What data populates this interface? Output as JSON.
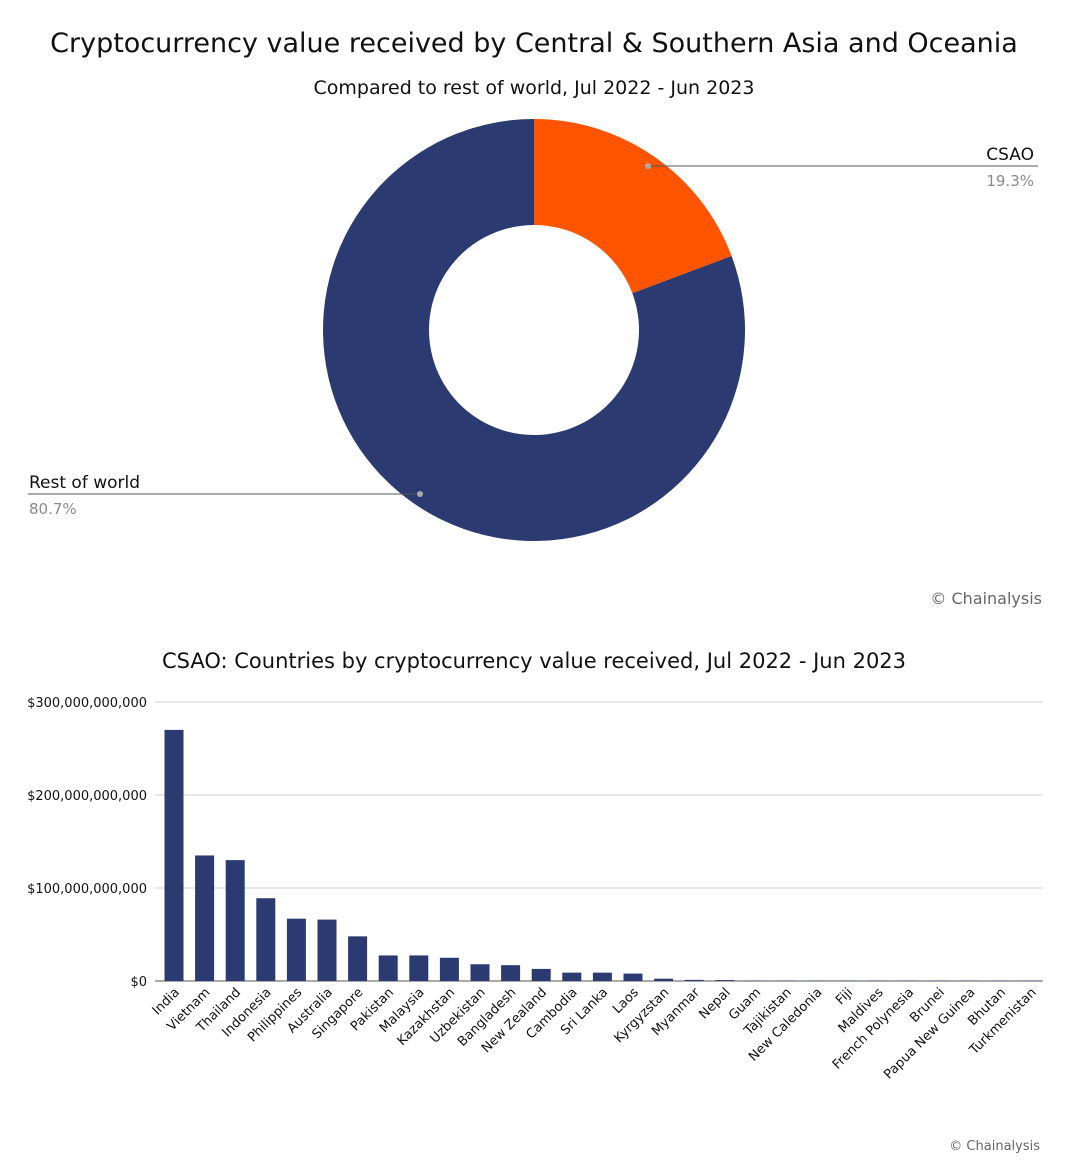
{
  "chart_data": [
    {
      "type": "pie",
      "title": "Cryptocurrency value received by Central & Southern Asia and Oceania",
      "subtitle": "Compared to rest of world, Jul 2022 - Jun 2023",
      "donut": true,
      "slices": [
        {
          "label": "CSAO",
          "value": 19.3,
          "display": "19.3%",
          "color": "#FF5500"
        },
        {
          "label": "Rest of world",
          "value": 80.7,
          "display": "80.7%",
          "color": "#2B3A70"
        }
      ],
      "credit": "© Chainalysis"
    },
    {
      "type": "bar",
      "title": "CSAO: Countries by cryptocurrency value received, Jul 2022 - Jun 2023",
      "xlabel": "",
      "ylabel": "",
      "ylim": [
        0,
        300000000000
      ],
      "yticks": [
        {
          "value": 0,
          "label": "$0"
        },
        {
          "value": 100000000000,
          "label": "$100,000,000,000"
        },
        {
          "value": 200000000000,
          "label": "$200,000,000,000"
        },
        {
          "value": 300000000000,
          "label": "$300,000,000,000"
        }
      ],
      "bar_color": "#2B3A70",
      "grid": true,
      "categories": [
        "India",
        "Vietnam",
        "Thailand",
        "Indonesia",
        "Philippines",
        "Australia",
        "Singapore",
        "Pakistan",
        "Malaysia",
        "Kazakhstan",
        "Uzbekistan",
        "Bangladesh",
        "New Zealand",
        "Cambodia",
        "Sri Lanka",
        "Laos",
        "Kyrgyzstan",
        "Myanmar",
        "Nepal",
        "Guam",
        "Tajikistan",
        "New Caledonia",
        "Fiji",
        "Maldives",
        "French Polynesia",
        "Brunei",
        "Papua New Guinea",
        "Bhutan",
        "Turkmenistan"
      ],
      "values": [
        270000000000,
        135000000000,
        130000000000,
        89000000000,
        67000000000,
        66000000000,
        48000000000,
        27500000000,
        27500000000,
        25000000000,
        18000000000,
        17000000000,
        13000000000,
        9000000000,
        9000000000,
        8000000000,
        2500000000,
        1200000000,
        1000000000,
        200000000,
        150000000,
        100000000,
        80000000,
        60000000,
        50000000,
        40000000,
        30000000,
        20000000,
        10000000
      ],
      "credit": "© Chainalysis"
    }
  ]
}
